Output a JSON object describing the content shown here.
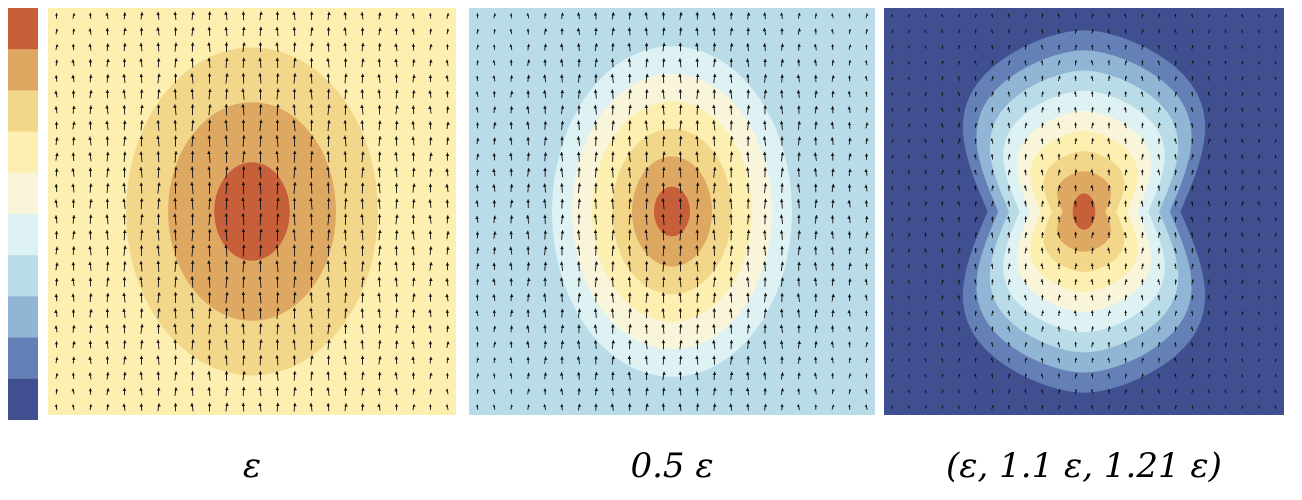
{
  "colors": {
    "levels": [
      "#3f4f8f",
      "#6480b6",
      "#91b5d4",
      "#b9dce8",
      "#def1f3",
      "#f8f5da",
      "#fcefb0",
      "#f2d68a",
      "#dfa862",
      "#c7603a"
    ]
  },
  "chart_data": [
    {
      "type": "heatmap",
      "subtype": "filled contour with vector field",
      "title": "ε",
      "level_colors": "low (dark blue) to high (dark orange-red), 10 levels",
      "field": {
        "center": [
          0.5,
          0.5
        ],
        "rx": 0.36,
        "ry": 0.47,
        "peak_level": 9,
        "floor_level": 6,
        "falloff": 1.0,
        "side_pinch": 0
      },
      "arrows": {
        "cols": 24,
        "rows": 26,
        "direction": "up",
        "length": 1.0
      }
    },
    {
      "type": "heatmap",
      "subtype": "filled contour with vector field",
      "title": "0.5 ε",
      "level_colors": "low (dark blue) to high (dark orange-red), 10 levels",
      "field": {
        "center": [
          0.5,
          0.5
        ],
        "rx": 0.32,
        "ry": 0.44,
        "peak_level": 9,
        "floor_level": 3,
        "falloff": 1.0,
        "side_pinch": 0
      },
      "arrows": {
        "cols": 24,
        "rows": 26,
        "direction": "up",
        "length": 0.9
      }
    },
    {
      "type": "heatmap",
      "subtype": "filled contour with vector field",
      "title": "(ε, 1.1 ε, 1.21 ε)",
      "level_colors": "low (dark blue) to high (dark orange-red), 10 levels",
      "field": {
        "center": [
          0.5,
          0.5
        ],
        "rx": 0.3,
        "ry": 0.47,
        "peak_level": 9,
        "floor_level": 0,
        "falloff": 1.0,
        "side_pinch": 0.12
      },
      "arrows": {
        "cols": 24,
        "rows": 26,
        "direction": "up",
        "length": 0.5
      }
    }
  ]
}
